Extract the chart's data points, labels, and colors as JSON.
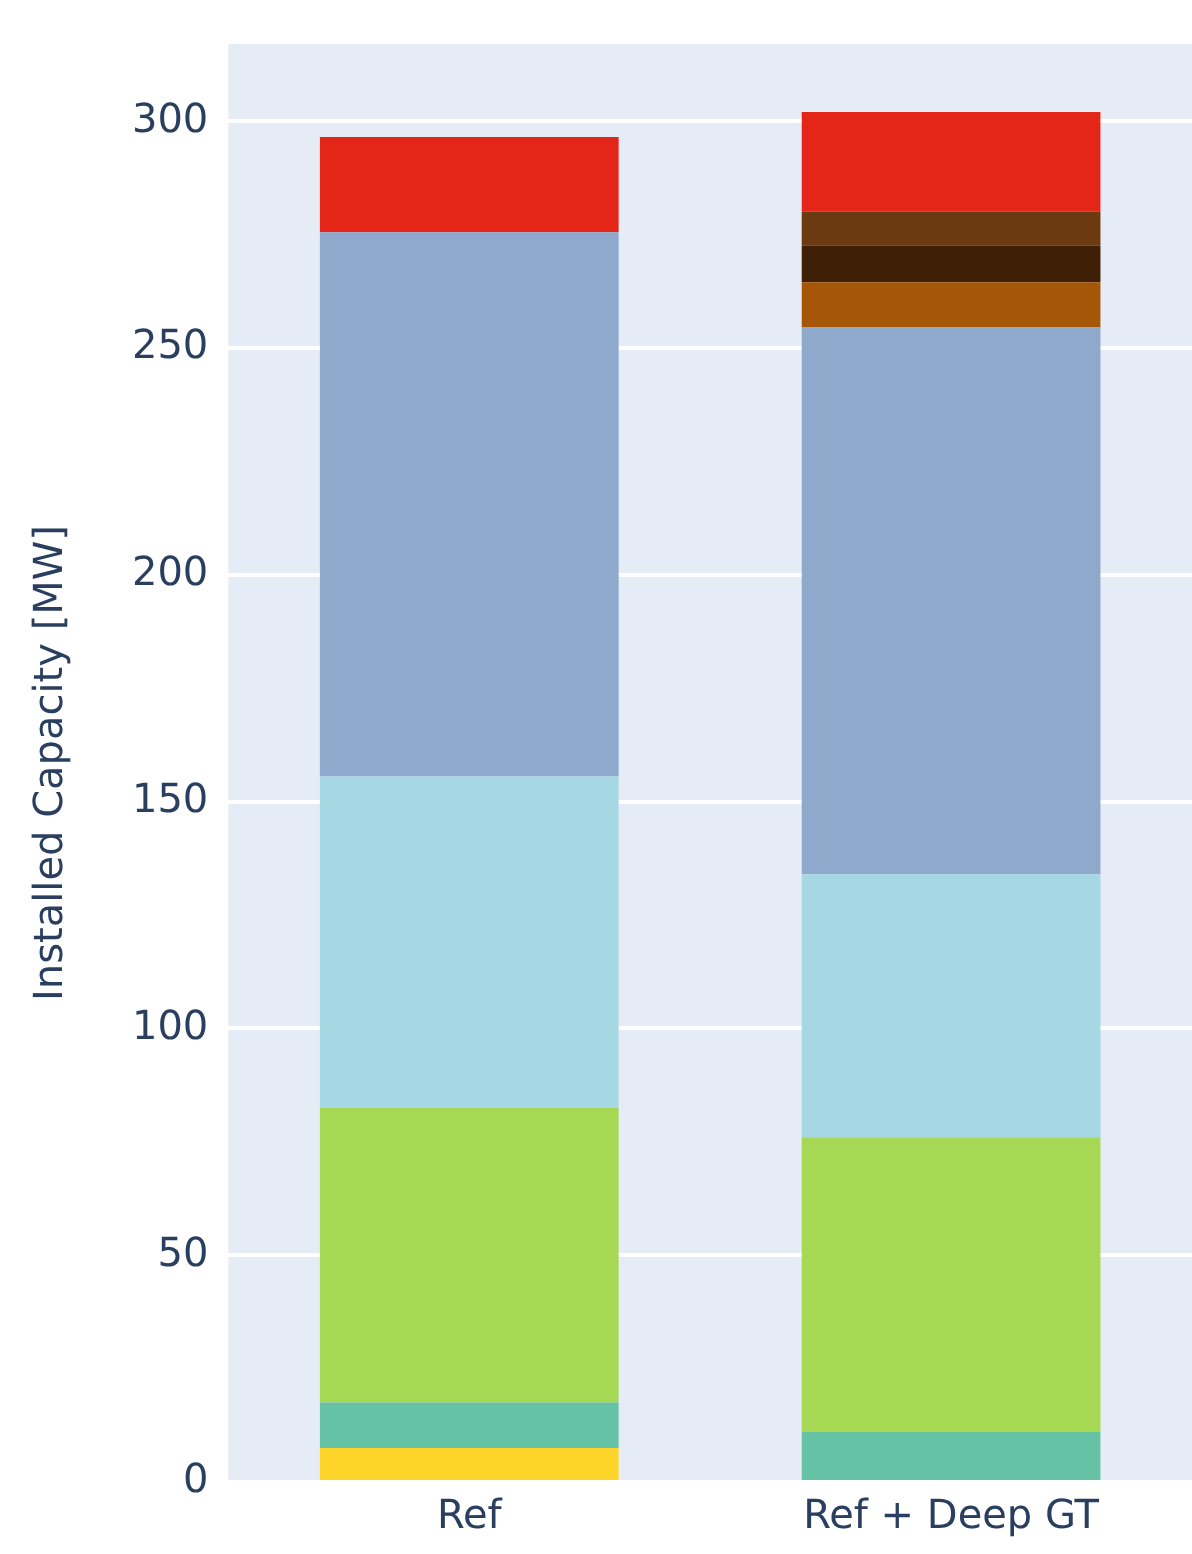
{
  "chart_data": {
    "type": "bar",
    "stacked": true,
    "ylabel": "Installed Capacity [MW]",
    "categories": [
      "Ref",
      "Ref + Deep GT"
    ],
    "series": [
      {
        "color": "#fdd52a",
        "values": [
          7.5,
          null
        ]
      },
      {
        "color": "#66c2a5",
        "values": [
          10,
          11
        ]
      },
      {
        "color": "#a6d854",
        "values": [
          65,
          65
        ]
      },
      {
        "color": "#a5d8e2",
        "values": [
          73,
          58
        ]
      },
      {
        "color": "#8ea9cb",
        "values": [
          120,
          120.5
        ]
      },
      {
        "color": "#a65609",
        "values": [
          null,
          10
        ]
      },
      {
        "color": "#3f1f05",
        "values": [
          null,
          8
        ]
      },
      {
        "color": "#6b3a10",
        "values": [
          null,
          7.5
        ]
      },
      {
        "color": "#e32618",
        "values": [
          21,
          22
        ]
      }
    ],
    "ylim": [
      0,
      317
    ],
    "yticks": [
      0,
      50,
      100,
      150,
      200,
      250,
      300
    ],
    "grid": "y",
    "legend": false
  }
}
